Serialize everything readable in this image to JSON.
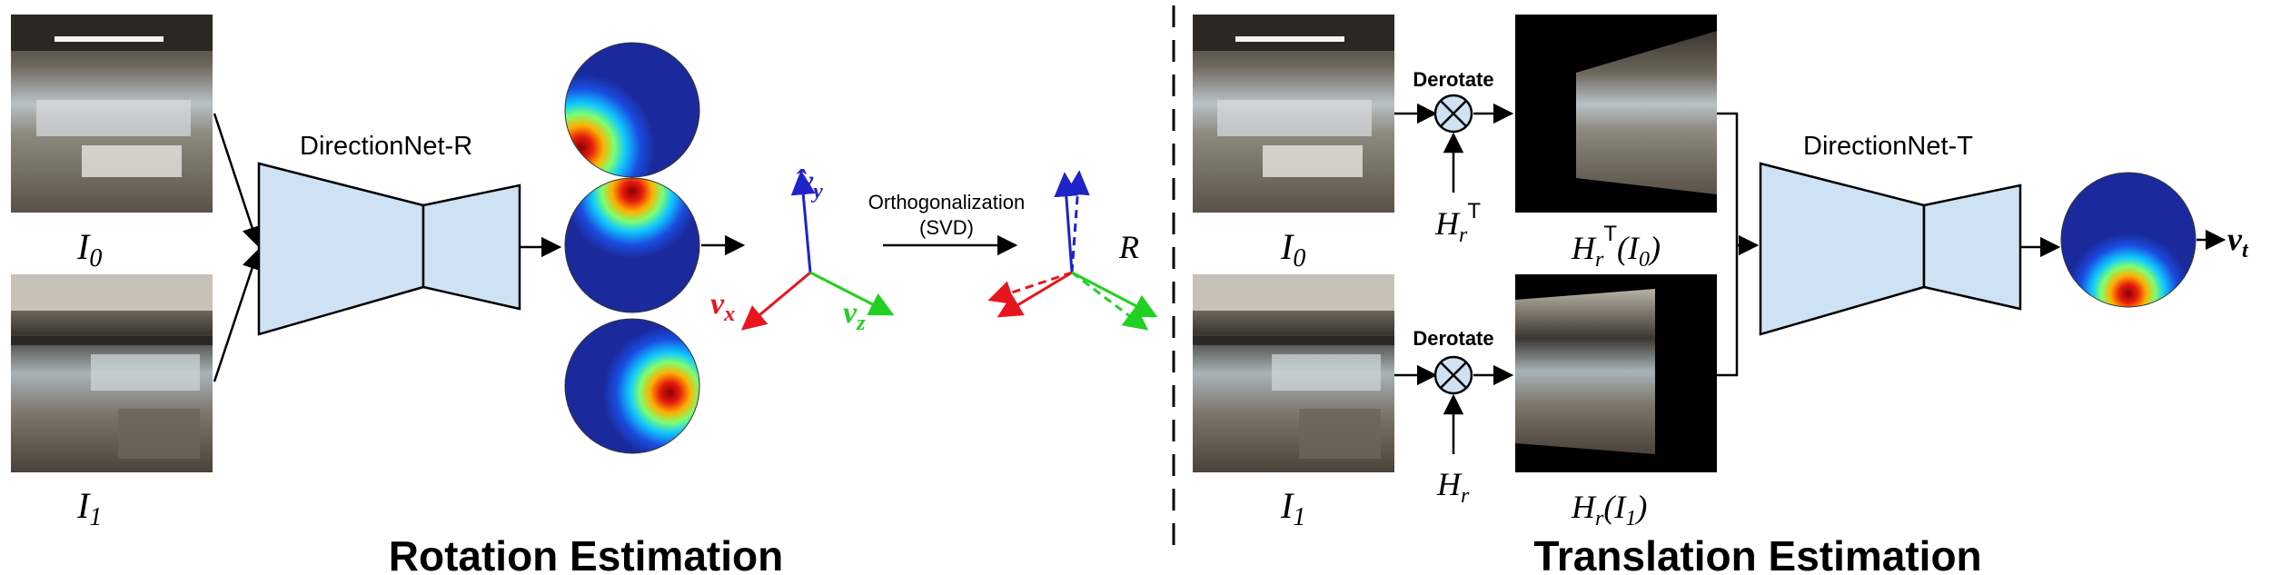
{
  "rotation": {
    "section_title": "Rotation Estimation",
    "network_label": "DirectionNet-R",
    "input_0": "I",
    "input_0_sub": "0",
    "input_1": "I",
    "input_1_sub": "1",
    "svd_label_line1": "Orthogonalization",
    "svd_label_line2": "(SVD)",
    "output_label": "R",
    "axis_y": "v",
    "axis_y_sub": "y",
    "axis_x": "v",
    "axis_x_sub": "x",
    "axis_z": "v",
    "axis_z_sub": "z"
  },
  "translation": {
    "section_title": "Translation Estimation",
    "network_label": "DirectionNet-T",
    "input_0": "I",
    "input_0_sub": "0",
    "input_1": "I",
    "input_1_sub": "1",
    "derotate_top": "Derotate",
    "derotate_bottom": "Derotate",
    "h_transpose": "H",
    "h_transpose_sub": "r",
    "h_transpose_sup": "T",
    "h_plain": "H",
    "h_plain_sub": "r",
    "warped_0": "H",
    "warped_0_sub": "r",
    "warped_0_sup": "T",
    "warped_0_arg": "(I",
    "warped_0_arg_sub": "0",
    "warped_0_close": ")",
    "warped_1": "H",
    "warped_1_sub": "r",
    "warped_1_arg": "(I",
    "warped_1_arg_sub": "1",
    "warped_1_close": ")",
    "output_label": "v",
    "output_sub": "t"
  },
  "colors": {
    "network_fill": "#cfe2f3",
    "axis_x": "#e8141e",
    "axis_y": "#1f23c8",
    "axis_z": "#22d021",
    "sphere_base": "#1a2a9c"
  }
}
